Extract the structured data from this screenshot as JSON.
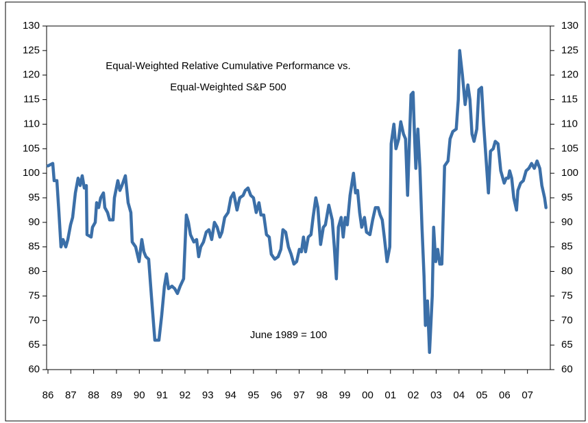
{
  "chart_data": {
    "type": "line",
    "title": [
      "Equal-Weighted Relative Cumulative Performance vs.",
      "Equal-Weighted S&P 500"
    ],
    "annotation": "June 1989 = 100",
    "xlim": [
      1986,
      2008
    ],
    "xticks": [
      {
        "value": 1986,
        "label": "86"
      },
      {
        "value": 1987,
        "label": "87"
      },
      {
        "value": 1988,
        "label": "88"
      },
      {
        "value": 1989,
        "label": "89"
      },
      {
        "value": 1990,
        "label": "90"
      },
      {
        "value": 1991,
        "label": "91"
      },
      {
        "value": 1992,
        "label": "92"
      },
      {
        "value": 1993,
        "label": "93"
      },
      {
        "value": 1994,
        "label": "94"
      },
      {
        "value": 1995,
        "label": "95"
      },
      {
        "value": 1996,
        "label": "96"
      },
      {
        "value": 1997,
        "label": "97"
      },
      {
        "value": 1998,
        "label": "98"
      },
      {
        "value": 1999,
        "label": "99"
      },
      {
        "value": 2000,
        "label": "00"
      },
      {
        "value": 2001,
        "label": "01"
      },
      {
        "value": 2002,
        "label": "02"
      },
      {
        "value": 2003,
        "label": "03"
      },
      {
        "value": 2004,
        "label": "04"
      },
      {
        "value": 2005,
        "label": "05"
      },
      {
        "value": 2006,
        "label": "06"
      },
      {
        "value": 2007,
        "label": "07"
      }
    ],
    "ylim": [
      60,
      130
    ],
    "yticks": [
      60,
      65,
      70,
      75,
      80,
      85,
      90,
      95,
      100,
      105,
      110,
      115,
      120,
      125,
      130
    ],
    "y2lim": [
      60,
      130
    ],
    "y2ticks": [
      60,
      65,
      70,
      75,
      80,
      85,
      90,
      95,
      100,
      105,
      110,
      115,
      120,
      125,
      130
    ],
    "grid": false,
    "color": "#3b6fa8",
    "x": [
      1986.0,
      1986.21,
      1986.27,
      1986.39,
      1986.48,
      1986.57,
      1986.66,
      1986.78,
      1986.87,
      1986.99,
      1987.08,
      1987.2,
      1987.32,
      1987.41,
      1987.5,
      1987.59,
      1987.68,
      1987.71,
      1987.89,
      1987.95,
      1988.07,
      1988.13,
      1988.22,
      1988.31,
      1988.43,
      1988.49,
      1988.61,
      1988.7,
      1988.85,
      1988.91,
      1989.06,
      1989.15,
      1989.24,
      1989.39,
      1989.51,
      1989.63,
      1989.69,
      1989.84,
      1989.99,
      1990.11,
      1990.2,
      1990.29,
      1990.41,
      1990.53,
      1990.68,
      1990.86,
      1990.98,
      1991.1,
      1991.19,
      1991.28,
      1991.43,
      1991.55,
      1991.67,
      1991.79,
      1991.94,
      1992.06,
      1992.15,
      1992.24,
      1992.39,
      1992.51,
      1992.6,
      1992.69,
      1992.81,
      1992.93,
      1993.05,
      1993.17,
      1993.29,
      1993.41,
      1993.53,
      1993.62,
      1993.74,
      1993.89,
      1994.01,
      1994.13,
      1994.28,
      1994.4,
      1994.55,
      1994.64,
      1994.76,
      1994.88,
      1995.0,
      1995.12,
      1995.24,
      1995.33,
      1995.45,
      1995.57,
      1995.69,
      1995.78,
      1995.93,
      1996.08,
      1996.2,
      1996.29,
      1996.41,
      1996.53,
      1996.65,
      1996.77,
      1996.89,
      1997.01,
      1997.1,
      1997.19,
      1997.28,
      1997.4,
      1997.52,
      1997.61,
      1997.73,
      1997.82,
      1997.94,
      1998.06,
      1998.15,
      1998.3,
      1998.45,
      1998.54,
      1998.63,
      1998.72,
      1998.84,
      1998.93,
      1999.02,
      1999.11,
      1999.23,
      1999.38,
      1999.47,
      1999.56,
      1999.65,
      1999.74,
      1999.86,
      1999.95,
      2000.1,
      2000.22,
      2000.34,
      2000.46,
      2000.55,
      2000.64,
      2000.73,
      2000.85,
      2000.97,
      2001.03,
      2001.15,
      2001.24,
      2001.36,
      2001.45,
      2001.57,
      2001.66,
      2001.75,
      2001.81,
      2001.9,
      2001.99,
      2002.05,
      2002.11,
      2002.2,
      2002.29,
      2002.38,
      2002.47,
      2002.53,
      2002.62,
      2002.71,
      2002.83,
      2002.89,
      2002.98,
      2003.07,
      2003.16,
      2003.25,
      2003.37,
      2003.52,
      2003.61,
      2003.73,
      2003.88,
      2003.97,
      2004.03,
      2004.15,
      2004.27,
      2004.39,
      2004.48,
      2004.57,
      2004.66,
      2004.78,
      2004.87,
      2004.99,
      2005.08,
      2005.17,
      2005.29,
      2005.38,
      2005.5,
      2005.59,
      2005.71,
      2005.83,
      2005.98,
      2006.07,
      2006.16,
      2006.22,
      2006.31,
      2006.4,
      2006.52,
      2006.58,
      2006.7,
      2006.82,
      2006.94,
      2007.06,
      2007.18,
      2007.3,
      2007.42,
      2007.54,
      2007.63,
      2007.75,
      2007.81
    ],
    "values": [
      101.5,
      102,
      98.5,
      98.5,
      92,
      85,
      86.5,
      85,
      86.5,
      89.5,
      91,
      96,
      99,
      97.5,
      99.5,
      97,
      97.5,
      87.5,
      87,
      89,
      90,
      94,
      93,
      95,
      96,
      93,
      92,
      90.5,
      90.5,
      95,
      98.5,
      96.5,
      97.5,
      99.5,
      94,
      92,
      86,
      85,
      82,
      86.5,
      84,
      83,
      82.5,
      75,
      66,
      66,
      71,
      77,
      79.5,
      76.5,
      77,
      76.5,
      75.5,
      77,
      78.5,
      91.5,
      90,
      87.5,
      86,
      86.5,
      83,
      85,
      86,
      88,
      88.5,
      86.5,
      90,
      89,
      87,
      88,
      91,
      92,
      95,
      96,
      92.5,
      95,
      95.5,
      96.5,
      97,
      95.5,
      95,
      92,
      94,
      91.5,
      91.5,
      87.5,
      87,
      83.5,
      82.5,
      83,
      84.5,
      88.5,
      88,
      85,
      83.5,
      81.5,
      82,
      84.5,
      84,
      87,
      84,
      87,
      87.5,
      91,
      95,
      93,
      85.5,
      89,
      89.5,
      93.5,
      90.5,
      85,
      78.5,
      89,
      91,
      87,
      91,
      89.5,
      95.5,
      100,
      96,
      96.5,
      92,
      89,
      91,
      88,
      87.5,
      90.5,
      93,
      93,
      91.5,
      90.5,
      87,
      82,
      85,
      106,
      110,
      105,
      107,
      110.5,
      108,
      107,
      95.5,
      104,
      116,
      116.5,
      108,
      101,
      109,
      101,
      89,
      79,
      69,
      74,
      63.5,
      75,
      89,
      82,
      84.5,
      81.5,
      81.5,
      101.5,
      102.5,
      107,
      108.5,
      109,
      115,
      125,
      120,
      114,
      118,
      115,
      108,
      106.5,
      109,
      117,
      117.5,
      110,
      104,
      96,
      104.5,
      105,
      106.5,
      106,
      100.5,
      98,
      99,
      99,
      100.5,
      99,
      95,
      92.5,
      96.5,
      98,
      98.5,
      100.5,
      101,
      102,
      101,
      102.5,
      101,
      97.5,
      95,
      93
    ]
  }
}
